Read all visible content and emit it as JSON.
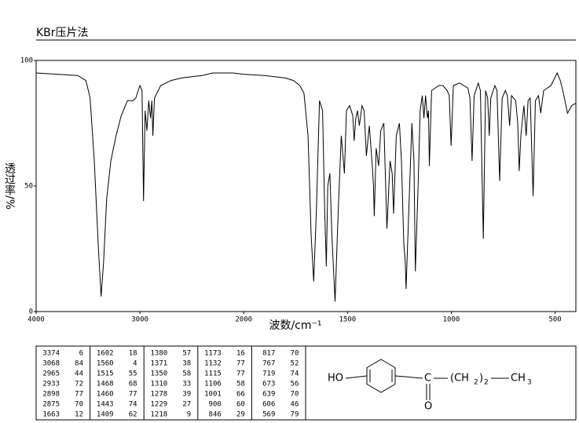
{
  "chart_data": {
    "type": "line",
    "title": "KBr压片法",
    "xlabel": "波数/cm⁻¹",
    "ylabel": "透过率/%",
    "xlim": [
      4000,
      400
    ],
    "ylim": [
      0,
      100
    ],
    "xticks": [
      4000,
      3000,
      2000,
      1500,
      1000,
      500
    ],
    "yticks": [
      0,
      50,
      100
    ],
    "color": "#000000",
    "x": [
      4000,
      3800,
      3600,
      3520,
      3480,
      3440,
      3400,
      3374,
      3350,
      3320,
      3280,
      3230,
      3180,
      3120,
      3068,
      3040,
      3000,
      2980,
      2965,
      2950,
      2933,
      2915,
      2898,
      2885,
      2875,
      2860,
      2800,
      2700,
      2600,
      2500,
      2400,
      2300,
      2200,
      2100,
      2000,
      1900,
      1800,
      1760,
      1730,
      1710,
      1690,
      1675,
      1663,
      1650,
      1635,
      1620,
      1610,
      1602,
      1595,
      1585,
      1575,
      1560,
      1545,
      1530,
      1515,
      1505,
      1490,
      1475,
      1468,
      1460,
      1452,
      1443,
      1430,
      1420,
      1409,
      1395,
      1380,
      1375,
      1371,
      1362,
      1350,
      1340,
      1325,
      1310,
      1295,
      1285,
      1278,
      1265,
      1250,
      1240,
      1229,
      1222,
      1218,
      1205,
      1190,
      1180,
      1173,
      1160,
      1150,
      1140,
      1132,
      1124,
      1115,
      1110,
      1106,
      1095,
      1060,
      1040,
      1020,
      1010,
      1001,
      990,
      960,
      940,
      920,
      910,
      900,
      890,
      870,
      860,
      846,
      835,
      825,
      817,
      810,
      790,
      780,
      767,
      755,
      740,
      730,
      719,
      710,
      690,
      680,
      673,
      665,
      650,
      639,
      630,
      620,
      606,
      595,
      580,
      569,
      555,
      520,
      490,
      475,
      460,
      440,
      420,
      400
    ],
    "values": [
      95,
      94.5,
      94,
      92,
      85,
      60,
      25,
      6,
      20,
      45,
      60,
      70,
      78,
      84,
      84,
      85,
      90,
      88,
      44,
      80,
      72,
      84,
      77,
      84,
      70,
      85,
      90,
      92,
      93,
      93.5,
      94,
      95,
      95,
      95,
      94.5,
      94,
      93,
      92,
      90,
      87,
      70,
      30,
      12,
      40,
      84,
      80,
      40,
      18,
      50,
      55,
      30,
      4,
      40,
      70,
      55,
      80,
      82,
      78,
      68,
      77,
      80,
      74,
      82,
      80,
      62,
      74,
      57,
      50,
      38,
      65,
      58,
      72,
      75,
      33,
      60,
      55,
      39,
      70,
      75,
      60,
      27,
      20,
      9,
      40,
      75,
      60,
      16,
      50,
      80,
      86,
      77,
      86,
      77,
      80,
      58,
      88,
      90,
      90,
      88,
      86,
      66,
      90,
      91,
      90,
      89,
      85,
      60,
      86,
      91,
      88,
      29,
      88,
      85,
      70,
      85,
      90,
      88,
      52,
      85,
      88,
      86,
      74,
      86,
      84,
      75,
      56,
      70,
      82,
      70,
      84,
      85,
      46,
      84,
      86,
      79,
      88,
      90,
      95,
      92,
      87,
      79,
      82,
      83
    ]
  },
  "table": {
    "columns": [
      [
        [
          3374,
          6
        ],
        [
          3068,
          84
        ],
        [
          2965,
          44
        ],
        [
          2933,
          72
        ],
        [
          2898,
          77
        ],
        [
          2875,
          70
        ],
        [
          1663,
          12
        ]
      ],
      [
        [
          1602,
          18
        ],
        [
          1560,
          4
        ],
        [
          1515,
          55
        ],
        [
          1468,
          68
        ],
        [
          1460,
          77
        ],
        [
          1443,
          74
        ],
        [
          1409,
          62
        ]
      ],
      [
        [
          1380,
          57
        ],
        [
          1371,
          38
        ],
        [
          1350,
          58
        ],
        [
          1310,
          33
        ],
        [
          1278,
          39
        ],
        [
          1229,
          27
        ],
        [
          1218,
          9
        ]
      ],
      [
        [
          1173,
          16
        ],
        [
          1132,
          77
        ],
        [
          1115,
          77
        ],
        [
          1106,
          58
        ],
        [
          1001,
          66
        ],
        [
          900,
          60
        ],
        [
          846,
          29
        ]
      ],
      [
        [
          817,
          70
        ],
        [
          767,
          52
        ],
        [
          719,
          74
        ],
        [
          673,
          56
        ],
        [
          639,
          70
        ],
        [
          606,
          46
        ],
        [
          569,
          79
        ]
      ]
    ]
  },
  "structure": {
    "labels": [
      "HO",
      "C",
      "O",
      "(CH",
      "2",
      ")",
      "2",
      "CH",
      "3"
    ]
  }
}
